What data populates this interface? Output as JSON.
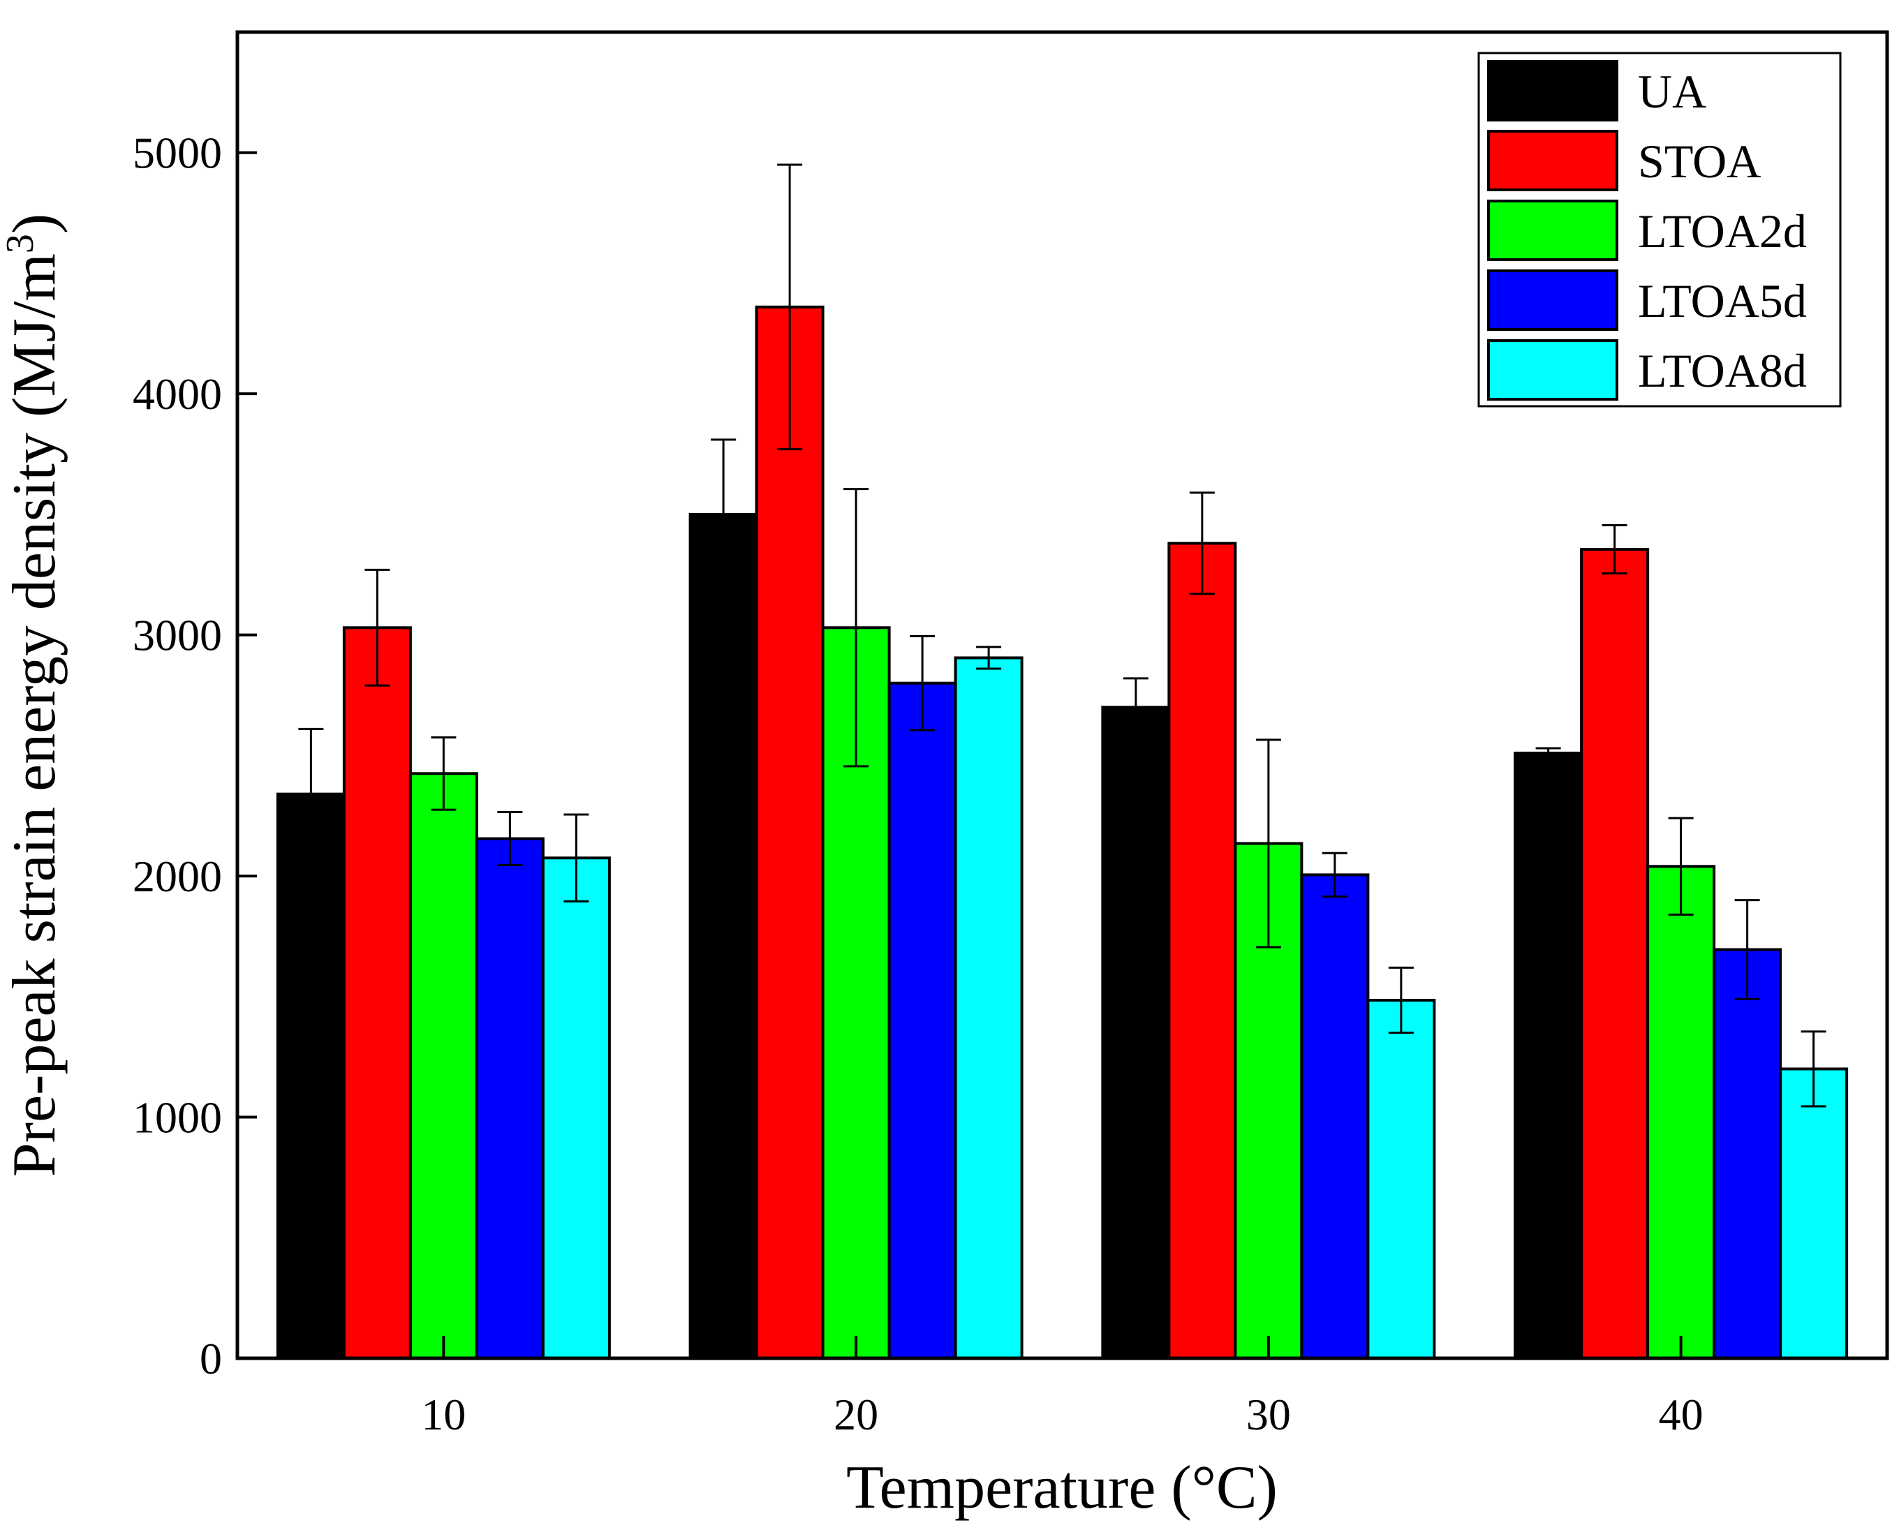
{
  "chart_data": {
    "type": "bar",
    "title": "",
    "xlabel": "Temperature (°C)",
    "ylabel_main": "Pre-peak strain energy density (MJ/m",
    "ylabel_sup": "3",
    "ylabel_close": ")",
    "categories": [
      "10",
      "20",
      "30",
      "40"
    ],
    "ylim": [
      0,
      5500
    ],
    "yticks": [
      0,
      1000,
      2000,
      3000,
      4000,
      5000
    ],
    "ytick_labels": [
      "0",
      "1000",
      "2000",
      "3000",
      "4000",
      "5000"
    ],
    "legend_position": "top-right",
    "series": [
      {
        "name": "UA",
        "color": "#000000",
        "values": [
          2340,
          3500,
          2700,
          2510
        ],
        "errors": [
          270,
          310,
          120,
          20
        ]
      },
      {
        "name": "STOA",
        "color": "#ff0000",
        "values": [
          3030,
          4360,
          3380,
          3355
        ],
        "errors": [
          240,
          590,
          210,
          100
        ]
      },
      {
        "name": "LTOA2d",
        "color": "#00ff00",
        "values": [
          2425,
          3030,
          2135,
          2040
        ],
        "errors": [
          150,
          575,
          430,
          200
        ]
      },
      {
        "name": "LTOA5d",
        "color": "#0000ff",
        "values": [
          2155,
          2800,
          2005,
          1695
        ],
        "errors": [
          110,
          195,
          90,
          205
        ]
      },
      {
        "name": "LTOA8d",
        "color": "#00ffff",
        "values": [
          2075,
          2905,
          1485,
          1200
        ],
        "errors": [
          180,
          45,
          135,
          155
        ]
      }
    ]
  }
}
